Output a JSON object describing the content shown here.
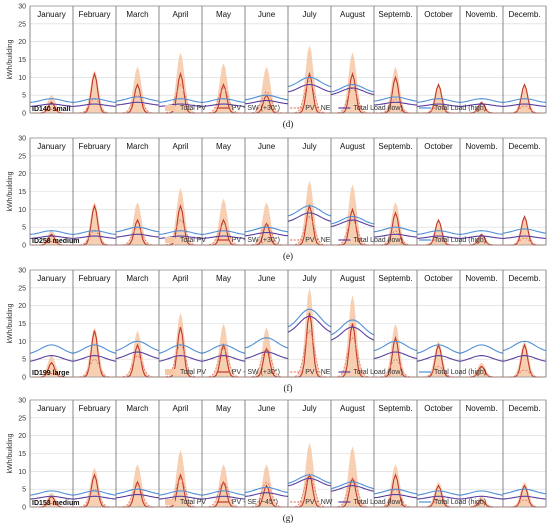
{
  "colors": {
    "total_pv": "#f6c8a6",
    "pv_primary": "#c0392b",
    "pv_secondary": "#e67e6a",
    "load_low": "#5b3fa0",
    "load_high": "#4f8fd6",
    "grid": "#d8d8d8",
    "month_divider": "#555555"
  },
  "chart_data": [
    {
      "type": "area",
      "label": "ID140 small",
      "caption": "(d)",
      "ylabel": "kWh/building",
      "ylim": [
        0,
        30
      ],
      "yticks": [
        0,
        5,
        10,
        15,
        20,
        25,
        30
      ],
      "categories": [
        "January",
        "February",
        "March",
        "April",
        "May",
        "June",
        "July",
        "August",
        "Septemb.",
        "October",
        "Novemb.",
        "Decemb."
      ],
      "legend": [
        "Total PV",
        "PV - SW (+30°)",
        "PV - NE",
        "Total Load (low)",
        "Total Load (high)"
      ],
      "series": [
        {
          "name": "Total PV",
          "values": [
            5,
            12,
            13,
            17,
            14,
            13,
            19,
            17,
            13,
            8,
            3,
            8
          ]
        },
        {
          "name": "PV - SW (+30°)",
          "values": [
            3,
            11,
            8,
            11,
            8,
            5,
            11,
            11,
            10,
            8,
            3,
            8
          ]
        },
        {
          "name": "PV - NE",
          "values": [
            1,
            4,
            5,
            8,
            7,
            6,
            9,
            7,
            4,
            2,
            1,
            2
          ]
        },
        {
          "name": "Total Load (low)",
          "values": [
            2.5,
            2.5,
            3,
            2.5,
            2.5,
            3.5,
            8,
            7,
            3,
            2.5,
            2.5,
            2.5
          ]
        },
        {
          "name": "Total Load (high)",
          "values": [
            4,
            4,
            4.5,
            4,
            4,
            5,
            10,
            8,
            4.5,
            4,
            4,
            4
          ]
        }
      ]
    },
    {
      "type": "area",
      "label": "ID258 medium",
      "caption": "(e)",
      "ylabel": "kWh/building",
      "ylim": [
        0,
        30
      ],
      "yticks": [
        0,
        5,
        10,
        15,
        20,
        25,
        30
      ],
      "categories": [
        "January",
        "February",
        "March",
        "April",
        "May",
        "June",
        "July",
        "August",
        "Septemb.",
        "October",
        "Novemb.",
        "Decemb."
      ],
      "legend": [
        "Total PV",
        "PV - SW (+30°)",
        "PV - NE",
        "Total Load (low)",
        "Total Load (high)"
      ],
      "series": [
        {
          "name": "Total PV",
          "values": [
            4,
            12,
            12,
            16,
            13,
            12,
            18,
            17,
            12,
            7,
            3,
            8
          ]
        },
        {
          "name": "PV - SW (+30°)",
          "values": [
            3,
            11,
            7,
            11,
            7,
            6,
            11,
            10,
            9,
            7,
            3,
            8
          ]
        },
        {
          "name": "PV - NE",
          "values": [
            1,
            4,
            5,
            7,
            6,
            6,
            8,
            7,
            4,
            2,
            1,
            2
          ]
        },
        {
          "name": "Total Load (low)",
          "values": [
            2.5,
            2.5,
            3,
            2.5,
            2.5,
            3.5,
            9,
            7,
            3,
            2.5,
            2.5,
            2.5
          ]
        },
        {
          "name": "Total Load (high)",
          "values": [
            4,
            4,
            5,
            4,
            4,
            5,
            11,
            8,
            5,
            4,
            4,
            4.5
          ]
        }
      ]
    },
    {
      "type": "area",
      "label": "ID199 large",
      "caption": "(f)",
      "ylabel": "kWh/building",
      "ylim": [
        0,
        30
      ],
      "yticks": [
        0,
        5,
        10,
        15,
        20,
        25,
        30
      ],
      "categories": [
        "January",
        "February",
        "March",
        "April",
        "May",
        "June",
        "July",
        "August",
        "Septemb.",
        "October",
        "Novemb.",
        "Decemb."
      ],
      "legend": [
        "Total PV",
        "PV - SW (+30°)",
        "PV - NE",
        "Total Load (low)",
        "Total Load (high)"
      ],
      "series": [
        {
          "name": "Total PV",
          "values": [
            6,
            14,
            13,
            18,
            15,
            14,
            25,
            23,
            15,
            10,
            4,
            10
          ]
        },
        {
          "name": "PV - SW (+30°)",
          "values": [
            4,
            13,
            9,
            14,
            9,
            8,
            18,
            15,
            11,
            9,
            3,
            9
          ]
        },
        {
          "name": "PV - NE",
          "values": [
            1,
            5,
            6,
            9,
            8,
            8,
            13,
            11,
            5,
            3,
            1,
            2
          ]
        },
        {
          "name": "Total Load (low)",
          "values": [
            6,
            6,
            7,
            6,
            6,
            7,
            17,
            14,
            7,
            6,
            6,
            6
          ]
        },
        {
          "name": "Total Load (high)",
          "values": [
            9,
            9,
            10,
            9,
            9,
            11,
            19,
            16,
            10,
            9,
            9,
            10
          ]
        }
      ]
    },
    {
      "type": "area",
      "label": "ID153 medium",
      "caption": "(g)",
      "ylabel": "kWh/building",
      "ylim": [
        0,
        30
      ],
      "yticks": [
        0,
        5,
        10,
        15,
        20,
        25,
        30
      ],
      "categories": [
        "January",
        "February",
        "March",
        "April",
        "May",
        "June",
        "July",
        "August",
        "Septemb.",
        "October",
        "Novemb.",
        "Decemb."
      ],
      "legend": [
        "Total PV",
        "PV - SE (−45°)",
        "PV - NW",
        "Total Load (low)",
        "Total Load (high)"
      ],
      "series": [
        {
          "name": "Total PV",
          "values": [
            4,
            11,
            12,
            16,
            12,
            12,
            18,
            17,
            12,
            7,
            3,
            7
          ]
        },
        {
          "name": "PV - SE (−45°)",
          "values": [
            3,
            9,
            7,
            9,
            7,
            6,
            9,
            8,
            9,
            6,
            2,
            6
          ]
        },
        {
          "name": "PV - NW",
          "values": [
            1,
            5,
            6,
            8,
            7,
            7,
            9,
            8,
            5,
            2,
            1,
            2
          ]
        },
        {
          "name": "Total Load (low)",
          "values": [
            3,
            3,
            3.5,
            3,
            3,
            4,
            8,
            6,
            3.5,
            3,
            3,
            3
          ]
        },
        {
          "name": "Total Load (high)",
          "values": [
            4.5,
            4.5,
            5,
            4.5,
            4.5,
            5.5,
            9,
            7,
            5,
            4.5,
            4.5,
            5
          ]
        }
      ]
    }
  ]
}
